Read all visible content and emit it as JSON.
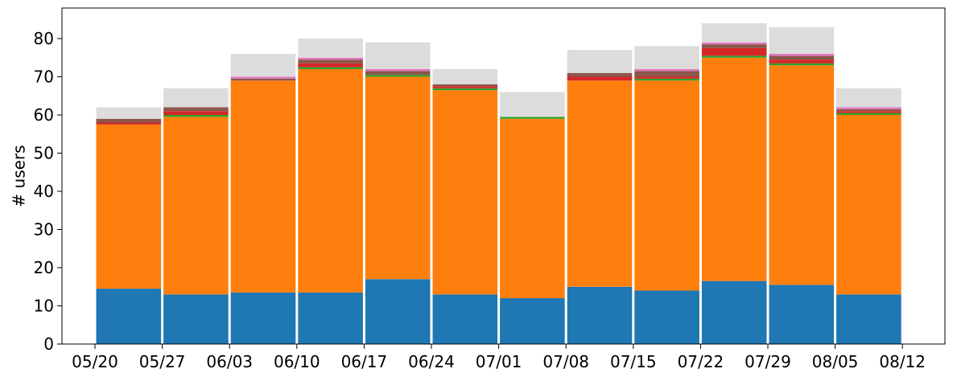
{
  "chart_data": {
    "type": "bar",
    "stacked": true,
    "title": "",
    "xlabel": "",
    "ylabel": "# users",
    "ylim": [
      0,
      88
    ],
    "yticks": [
      0,
      10,
      20,
      30,
      40,
      50,
      60,
      70,
      80
    ],
    "xticks": [
      "05/20",
      "05/27",
      "06/03",
      "06/10",
      "06/17",
      "06/24",
      "07/01",
      "07/08",
      "07/15",
      "07/22",
      "07/29",
      "08/05",
      "08/12"
    ],
    "grid": false,
    "legend": "none",
    "series": [
      {
        "color": "#1f77b4",
        "values": [
          14.5,
          13,
          13.5,
          13.5,
          17,
          13,
          12,
          15,
          14,
          16.5,
          15.5,
          13
        ]
      },
      {
        "color": "#ff7f0e",
        "values": [
          43,
          46.5,
          55.5,
          58.5,
          53,
          53.5,
          47,
          54,
          55,
          58.5,
          57.5,
          47
        ]
      },
      {
        "color": "#2ca02c",
        "values": [
          0,
          0.5,
          0,
          0.5,
          0.5,
          0.5,
          0.5,
          0,
          0.5,
          0.5,
          0.5,
          0.5
        ]
      },
      {
        "color": "#d62728",
        "values": [
          0.5,
          1,
          0,
          1,
          0,
          0.5,
          0,
          1,
          0.5,
          2,
          1,
          0.5
        ]
      },
      {
        "color": "#8c564b",
        "values": [
          1,
          1,
          0.5,
          1,
          1,
          0.5,
          0,
          1,
          1.5,
          1,
          1,
          0.5
        ]
      },
      {
        "color": "#e377c2",
        "values": [
          0,
          0,
          0.5,
          0.5,
          0.5,
          0,
          0,
          0,
          0.5,
          0.5,
          0.5,
          0.5
        ]
      },
      {
        "color": "#dcdcdc",
        "values": [
          3,
          5,
          6,
          5,
          7,
          4,
          6.5,
          6,
          6,
          5,
          7,
          5
        ]
      }
    ]
  }
}
